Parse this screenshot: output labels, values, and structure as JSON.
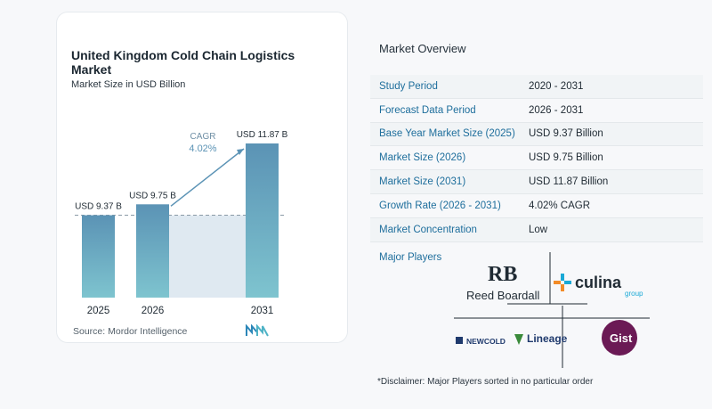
{
  "chart": {
    "title": "United Kingdom Cold Chain Logistics Market",
    "subtitle": "Market Size in USD Billion",
    "source": "Source:  Mordor Intelligence",
    "cagr_label": "CAGR",
    "cagr_value": "4.02%"
  },
  "chart_data": {
    "type": "bar",
    "title": "United Kingdom Cold Chain Logistics Market",
    "subtitle": "Market Size in USD Billion",
    "categories": [
      "2025",
      "2026",
      "2031"
    ],
    "values": [
      9.37,
      9.75,
      11.87
    ],
    "value_labels": [
      "USD 9.37 B",
      "USD 9.75 B",
      "USD 11.87 B"
    ],
    "annotation": {
      "label": "CAGR",
      "value": "4.02%"
    },
    "colors": {
      "bar_top": "#5b93b5",
      "bar_bottom": "#7ec4cf",
      "band": "#dfe9f1"
    }
  },
  "overview": {
    "title": "Market Overview",
    "rows": [
      {
        "label": "Study Period",
        "value": "2020 - 2031"
      },
      {
        "label": "Forecast Data Period",
        "value": "2026 - 2031"
      },
      {
        "label": "Base Year Market Size (2025)",
        "value": "USD 9.37 Billion"
      },
      {
        "label": "Market Size (2026)",
        "value": "USD 9.75 Billion"
      },
      {
        "label": "Market Size (2031)",
        "value": "USD 11.87 Billion"
      },
      {
        "label": "Growth Rate (2026 - 2031)",
        "value": "4.02% CAGR"
      },
      {
        "label": "Market Concentration",
        "value": "Low"
      }
    ],
    "players_label": "Major Players",
    "players": {
      "reed_boardall": "Reed Boardall",
      "culina": "culina",
      "culina_sub": "group",
      "newcold": "NEWCOLD",
      "lineage": "Lineage",
      "gist": "Gist"
    },
    "disclaimer": "*Disclaimer: Major Players sorted in no particular order"
  }
}
